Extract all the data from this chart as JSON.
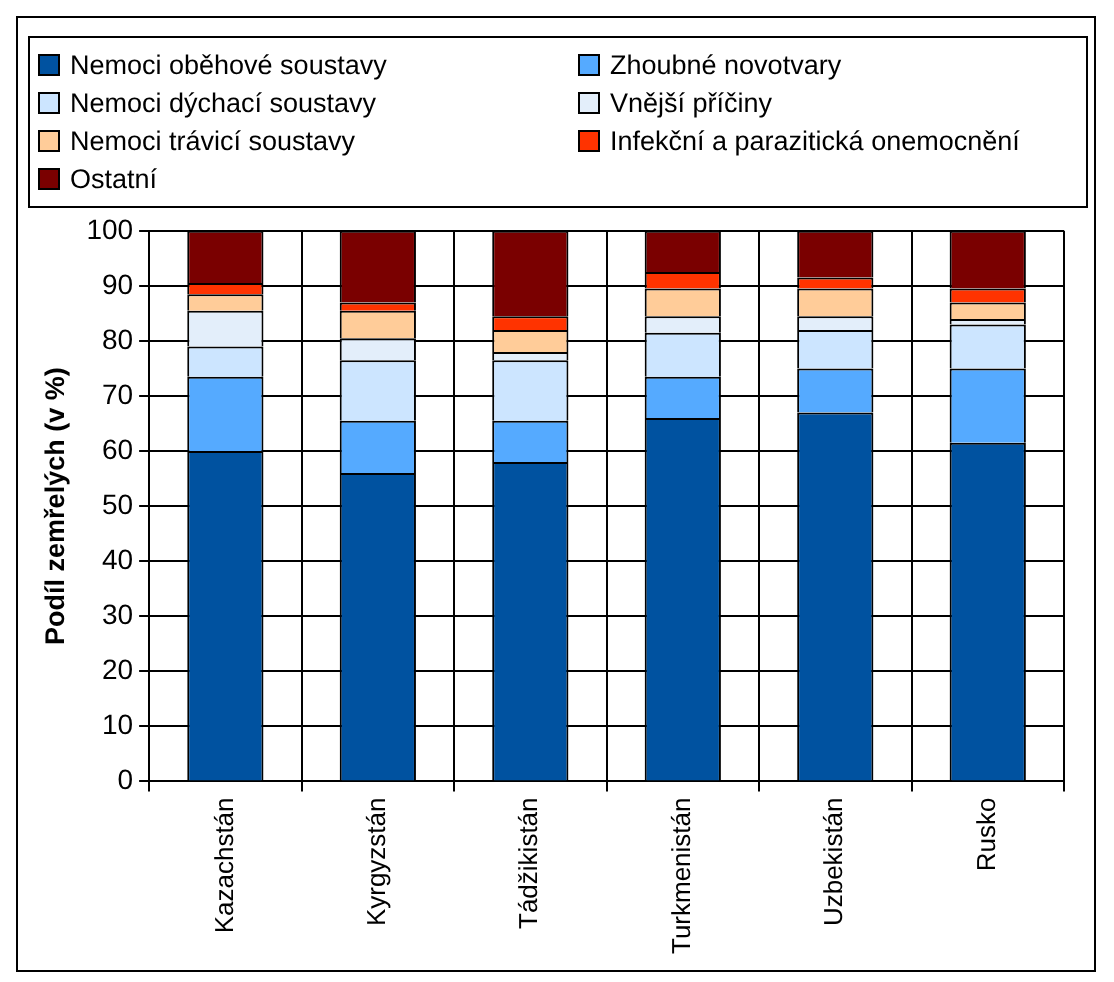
{
  "chart_data": {
    "type": "bar",
    "stacked": true,
    "ylabel": "Podíl zemřelých (v %)",
    "categories": [
      "Kazachstán",
      "Kyrgyzstán",
      "Tádžikistán",
      "Turkmenistán",
      "Uzbekistán",
      "Rusko"
    ],
    "series": [
      {
        "name": "Nemoci oběhové soustavy",
        "color": "#0052a0",
        "values": [
          60,
          56,
          58,
          66,
          67,
          61.5
        ]
      },
      {
        "name": "Zhoubné novotvary",
        "color": "#55aaff",
        "values": [
          13.5,
          9.5,
          7.5,
          7.5,
          8,
          13.5
        ]
      },
      {
        "name": "Nemoci dýchací soustavy",
        "color": "#cce5ff",
        "values": [
          5.5,
          11,
          11,
          8,
          7,
          8
        ]
      },
      {
        "name": "Vnější příčiny",
        "color": "#e3eefa",
        "values": [
          6.5,
          4,
          1.5,
          3,
          2.5,
          1
        ]
      },
      {
        "name": "Nemoci trávicí soustavy",
        "color": "#ffcc99",
        "values": [
          3,
          5,
          4,
          5,
          5,
          3
        ]
      },
      {
        "name": "Infekční a parazitická onemocnění",
        "color": "#ff3300",
        "values": [
          2,
          1.5,
          2.5,
          3,
          2,
          2.5
        ]
      },
      {
        "name": "Ostatní",
        "color": "#7a0000",
        "values": [
          9.5,
          13,
          15.5,
          7.5,
          8.5,
          10.5
        ]
      }
    ],
    "ylim": [
      0,
      100
    ],
    "yticks": [
      0,
      10,
      20,
      30,
      40,
      50,
      60,
      70,
      80,
      90,
      100
    ],
    "grid": true,
    "legend": "top"
  }
}
